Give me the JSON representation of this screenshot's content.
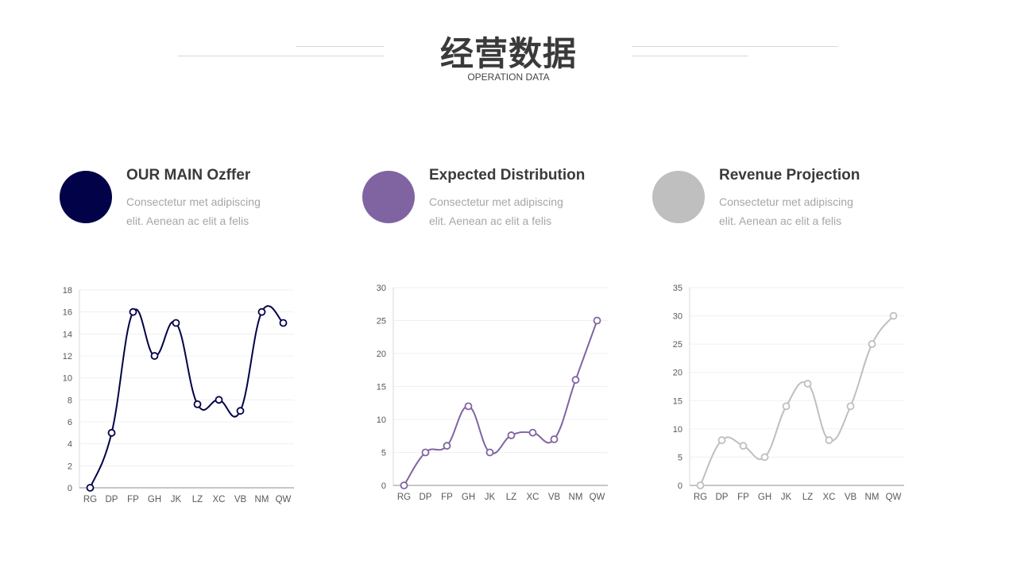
{
  "header": {
    "title": "经营数据",
    "subtitle": "OPERATION DATA"
  },
  "cards": [
    {
      "title": "OUR MAIN Ozffer",
      "desc_line1": "Consectetur  met adipiscing",
      "desc_line2": "elit. Aenean ac elit a felis",
      "color": "#020248"
    },
    {
      "title": "Expected Distribution",
      "desc_line1": "Consectetur  met adipiscing",
      "desc_line2": "elit. Aenean ac elit a felis",
      "color": "#8064a2"
    },
    {
      "title": "Revenue Projection",
      "desc_line1": "Consectetur  met adipiscing",
      "desc_line2": "elit. Aenean ac elit a felis",
      "color": "#bfbfbf"
    }
  ],
  "chart_data": [
    {
      "type": "line",
      "smooth": true,
      "categories": [
        "RG",
        "DP",
        "FP",
        "GH",
        "JK",
        "LZ",
        "XC",
        "VB",
        "NM",
        "QW"
      ],
      "values": [
        0,
        5,
        16,
        12,
        15,
        7.6,
        8,
        7,
        16,
        15
      ],
      "ylim": [
        0,
        18
      ],
      "yticks": [
        0,
        2,
        4,
        6,
        8,
        10,
        12,
        14,
        16,
        18
      ],
      "grid": true,
      "color": "#020248"
    },
    {
      "type": "line",
      "smooth": true,
      "categories": [
        "RG",
        "DP",
        "FP",
        "GH",
        "JK",
        "LZ",
        "XC",
        "VB",
        "NM",
        "QW"
      ],
      "values": [
        0,
        5,
        6,
        12,
        5,
        7.6,
        8,
        7,
        16,
        25
      ],
      "ylim": [
        0,
        30
      ],
      "yticks": [
        0,
        5,
        10,
        15,
        20,
        25,
        30
      ],
      "grid": true,
      "color": "#8064a2"
    },
    {
      "type": "line",
      "smooth": true,
      "categories": [
        "RG",
        "DP",
        "FP",
        "GH",
        "JK",
        "LZ",
        "XC",
        "VB",
        "NM",
        "QW"
      ],
      "values": [
        0,
        8,
        7,
        5,
        14,
        18,
        8,
        14,
        25,
        30
      ],
      "ylim": [
        0,
        35
      ],
      "yticks": [
        0,
        5,
        10,
        15,
        20,
        25,
        30,
        35
      ],
      "grid": true,
      "color": "#bfbfbf"
    }
  ]
}
